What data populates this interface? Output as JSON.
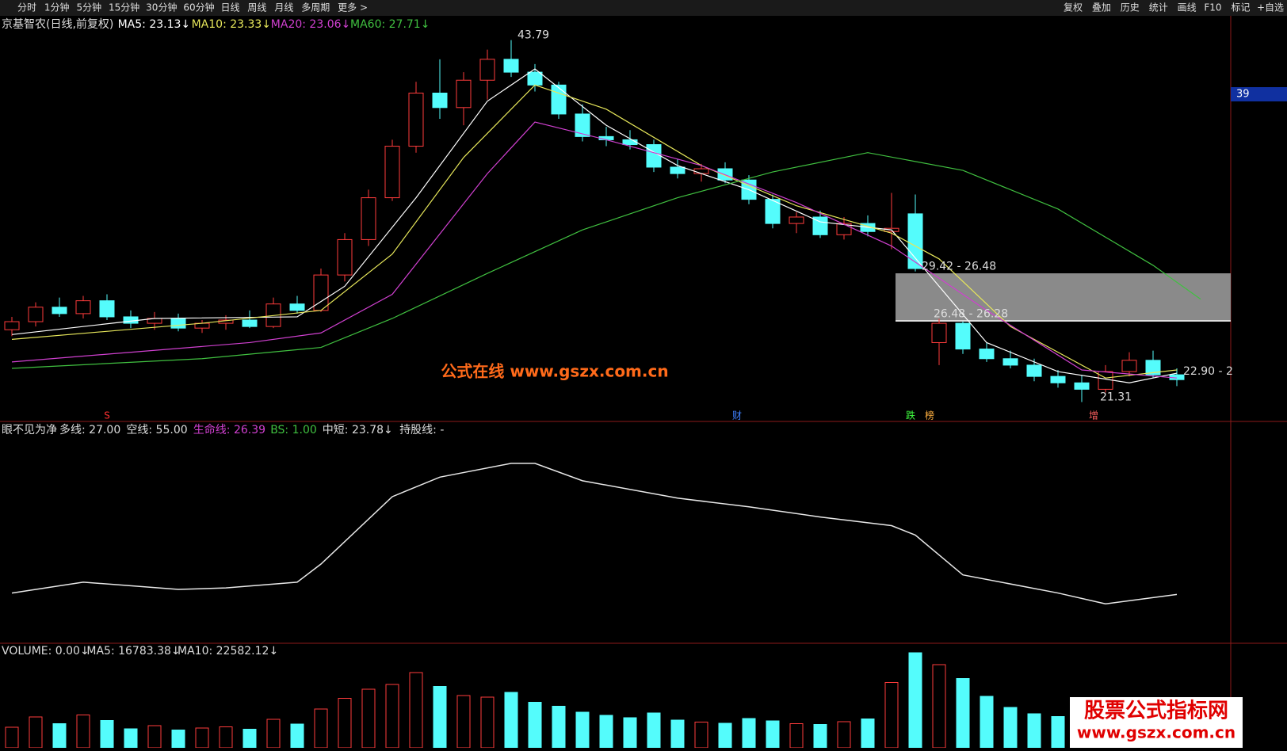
{
  "toolbar": {
    "left": [
      "分时",
      "1分钟",
      "5分钟",
      "15分钟",
      "30分钟",
      "60分钟",
      "日线",
      "周线",
      "月线",
      "多周期",
      "更多 >"
    ],
    "right": [
      "复权",
      "叠加",
      "历史",
      "统计",
      "画线",
      "F10",
      "标记",
      "+自选"
    ]
  },
  "price_panel": {
    "title": "京基智农(日线,前复权)",
    "ma_labels": [
      {
        "text": "MA5: 23.13↓",
        "color": "#ffffff"
      },
      {
        "text": "MA10: 23.33↓",
        "color": "#e6e65a"
      },
      {
        "text": "MA20: 23.06↓",
        "color": "#d040d0"
      },
      {
        "text": "MA60: 27.71↓",
        "color": "#40c040"
      }
    ],
    "ylim": [
      20.2,
      45.2
    ],
    "candles": [
      {
        "open": 25.8,
        "high": 26.6,
        "low": 25.4,
        "close": 26.3
      },
      {
        "open": 26.3,
        "high": 27.5,
        "low": 26.0,
        "close": 27.2
      },
      {
        "open": 27.2,
        "high": 27.8,
        "low": 26.6,
        "close": 26.8
      },
      {
        "open": 26.8,
        "high": 27.9,
        "low": 26.5,
        "close": 27.6
      },
      {
        "open": 27.6,
        "high": 28.0,
        "low": 26.4,
        "close": 26.6
      },
      {
        "open": 26.6,
        "high": 27.0,
        "low": 25.9,
        "close": 26.2
      },
      {
        "open": 26.2,
        "high": 26.9,
        "low": 25.8,
        "close": 26.5
      },
      {
        "open": 26.5,
        "high": 26.8,
        "low": 25.7,
        "close": 25.9
      },
      {
        "open": 25.9,
        "high": 26.4,
        "low": 25.6,
        "close": 26.2
      },
      {
        "open": 26.2,
        "high": 26.7,
        "low": 25.8,
        "close": 26.4
      },
      {
        "open": 26.4,
        "high": 27.0,
        "low": 25.9,
        "close": 26.0
      },
      {
        "open": 26.0,
        "high": 27.8,
        "low": 25.9,
        "close": 27.4
      },
      {
        "open": 27.4,
        "high": 27.9,
        "low": 26.8,
        "close": 27.0
      },
      {
        "open": 27.0,
        "high": 29.6,
        "low": 26.9,
        "close": 29.2
      },
      {
        "open": 29.2,
        "high": 31.8,
        "low": 28.8,
        "close": 31.4
      },
      {
        "open": 31.4,
        "high": 34.5,
        "low": 31.0,
        "close": 34.0
      },
      {
        "open": 34.0,
        "high": 37.6,
        "low": 33.8,
        "close": 37.2
      },
      {
        "open": 37.2,
        "high": 41.2,
        "low": 36.8,
        "close": 40.5
      },
      {
        "open": 40.5,
        "high": 42.6,
        "low": 38.9,
        "close": 39.6
      },
      {
        "open": 39.6,
        "high": 41.8,
        "low": 38.5,
        "close": 41.3
      },
      {
        "open": 41.3,
        "high": 43.2,
        "low": 40.1,
        "close": 42.6
      },
      {
        "open": 42.6,
        "high": 43.79,
        "low": 41.5,
        "close": 41.8
      },
      {
        "open": 41.8,
        "high": 42.3,
        "low": 40.6,
        "close": 41.0
      },
      {
        "open": 41.0,
        "high": 41.2,
        "low": 38.9,
        "close": 39.2
      },
      {
        "open": 39.2,
        "high": 39.8,
        "low": 37.5,
        "close": 37.8
      },
      {
        "open": 37.8,
        "high": 38.4,
        "low": 37.2,
        "close": 37.6
      },
      {
        "open": 37.6,
        "high": 38.2,
        "low": 37.0,
        "close": 37.3
      },
      {
        "open": 37.3,
        "high": 37.6,
        "low": 35.6,
        "close": 35.9
      },
      {
        "open": 35.9,
        "high": 36.4,
        "low": 35.2,
        "close": 35.5
      },
      {
        "open": 35.5,
        "high": 36.1,
        "low": 35.0,
        "close": 35.8
      },
      {
        "open": 35.8,
        "high": 36.2,
        "low": 34.9,
        "close": 35.1
      },
      {
        "open": 35.1,
        "high": 35.4,
        "low": 33.6,
        "close": 33.9
      },
      {
        "open": 33.9,
        "high": 34.2,
        "low": 32.1,
        "close": 32.4
      },
      {
        "open": 32.4,
        "high": 33.1,
        "low": 31.8,
        "close": 32.8
      },
      {
        "open": 32.8,
        "high": 33.2,
        "low": 31.5,
        "close": 31.7
      },
      {
        "open": 31.7,
        "high": 32.8,
        "low": 31.4,
        "close": 32.4
      },
      {
        "open": 32.4,
        "high": 32.9,
        "low": 31.6,
        "close": 31.9
      },
      {
        "open": 31.9,
        "high": 34.3,
        "low": 30.8,
        "close": 32.1
      },
      {
        "open": 33.0,
        "high": 34.2,
        "low": 29.42,
        "close": 29.6
      },
      {
        "open": 25.0,
        "high": 26.48,
        "low": 23.6,
        "close": 26.2
      },
      {
        "open": 26.2,
        "high": 26.3,
        "low": 24.3,
        "close": 24.6
      },
      {
        "open": 24.6,
        "high": 25.0,
        "low": 23.8,
        "close": 24.0
      },
      {
        "open": 24.0,
        "high": 24.5,
        "low": 23.4,
        "close": 23.6
      },
      {
        "open": 23.6,
        "high": 24.0,
        "low": 22.6,
        "close": 22.9
      },
      {
        "open": 22.9,
        "high": 23.3,
        "low": 22.2,
        "close": 22.5
      },
      {
        "open": 22.5,
        "high": 23.0,
        "low": 21.31,
        "close": 22.1
      },
      {
        "open": 22.1,
        "high": 23.6,
        "low": 21.9,
        "close": 23.2
      },
      {
        "open": 23.2,
        "high": 24.4,
        "low": 22.9,
        "close": 23.9
      },
      {
        "open": 23.9,
        "high": 24.5,
        "low": 22.8,
        "close": 23.0
      },
      {
        "open": 23.0,
        "high": 23.4,
        "low": 22.3,
        "close": 22.7
      }
    ],
    "lines": [
      {
        "name": "MA5",
        "color": "#ffffff",
        "x": [
          0,
          6,
          12,
          14,
          17,
          20,
          22,
          25,
          28,
          31,
          34,
          37,
          39,
          41,
          44,
          47,
          49
        ],
        "values": [
          25.5,
          26.5,
          26.6,
          28.5,
          34.0,
          40.0,
          42.0,
          38.5,
          36.0,
          34.5,
          32.5,
          32.0,
          28.5,
          25.0,
          23.2,
          22.5,
          23.1
        ]
      },
      {
        "name": "MA10",
        "color": "#e6e65a",
        "x": [
          0,
          8,
          13,
          16,
          19,
          22,
          25,
          29,
          33,
          37,
          39,
          42,
          46,
          49
        ],
        "values": [
          25.2,
          26.2,
          27.0,
          30.5,
          36.5,
          41.0,
          39.5,
          36.0,
          33.5,
          31.8,
          30.2,
          26.0,
          22.8,
          23.3
        ]
      },
      {
        "name": "MA20",
        "color": "#d040d0",
        "x": [
          0,
          10,
          13,
          16,
          20,
          22,
          25,
          29,
          33,
          37,
          41,
          45,
          49
        ],
        "values": [
          23.8,
          25.0,
          25.6,
          28.0,
          35.5,
          38.7,
          37.6,
          36.0,
          33.7,
          31.0,
          27.0,
          23.3,
          22.8
        ]
      },
      {
        "name": "MA60",
        "color": "#40c040",
        "x": [
          0,
          8,
          13,
          16,
          20,
          24,
          28,
          32,
          36,
          40,
          44,
          48,
          50
        ],
        "values": [
          23.4,
          24.0,
          24.7,
          26.5,
          29.3,
          32.0,
          34.0,
          35.6,
          36.8,
          35.7,
          33.3,
          29.8,
          27.7
        ]
      }
    ],
    "annotations": [
      {
        "text": "43.79",
        "x": 21,
        "y": 43.79
      },
      {
        "text": "29.42 - 26.48",
        "x": 38,
        "y": 29.42
      },
      {
        "text": "26.48 - 26.28",
        "x": 38.5,
        "y": 26.48
      },
      {
        "text": "22.90 - 2",
        "x": 49,
        "y": 22.9
      },
      {
        "text": "21.31",
        "x": 45.5,
        "y": 21.31
      }
    ],
    "markers": [
      {
        "text": "S",
        "x": 4,
        "color": "#ff3030"
      },
      {
        "text": "财",
        "x": 30.5,
        "color": "#4080ff"
      },
      {
        "text": "跌",
        "x": 37.8,
        "color": "#40ff40"
      },
      {
        "text": "榜",
        "x": 38.6,
        "color": "#ffb040"
      },
      {
        "text": "增",
        "x": 45.5,
        "color": "#ff6060"
      }
    ],
    "axis_badge": "39"
  },
  "indicator_panel": {
    "title": "眼不见为净",
    "labels": [
      {
        "text": "多线: 27.00",
        "color": "#dddddd"
      },
      {
        "text": "空线: 55.00",
        "color": "#dddddd"
      },
      {
        "text": "生命线: 26.39",
        "color": "#d040d0"
      },
      {
        "text": "BS: 1.00",
        "color": "#40c040"
      },
      {
        "text": "中短: 23.78↓",
        "color": "#dddddd"
      },
      {
        "text": "持股线: -",
        "color": "#dddddd"
      }
    ],
    "ylim": [
      18,
      46
    ],
    "line": {
      "x": [
        0,
        3,
        7,
        9,
        12,
        13,
        16,
        18,
        21,
        22,
        24,
        28,
        31,
        34,
        37,
        38,
        40,
        44,
        46,
        49
      ],
      "values": [
        24.5,
        26.0,
        25.0,
        25.2,
        26.0,
        28.5,
        37.8,
        40.5,
        42.4,
        42.4,
        40.0,
        37.6,
        36.4,
        35.0,
        33.8,
        32.5,
        27.0,
        24.5,
        23.0,
        24.3
      ]
    }
  },
  "volume_panel": {
    "labels": [
      {
        "text": "VOLUME: 0.00↓",
        "color": "#dddddd"
      },
      {
        "text": "MA5: 16783.38↓",
        "color": "#dddddd"
      },
      {
        "text": "MA10: 22582.12↓",
        "color": "#dddddd"
      }
    ],
    "ylim": [
      0,
      26000
    ],
    "values": [
      5200,
      7800,
      6100,
      8300,
      6900,
      4800,
      5600,
      4500,
      5000,
      5300,
      4700,
      7200,
      6000,
      9800,
      12500,
      14800,
      16000,
      19000,
      15500,
      13200,
      12800,
      14000,
      11500,
      10500,
      9000,
      8200,
      7600,
      8800,
      7000,
      6500,
      6200,
      7400,
      6800,
      6100,
      5900,
      6600,
      7300,
      16500,
      24000,
      21000,
      17500,
      13000,
      10200,
      8600,
      7900,
      6800,
      7500,
      8200,
      6900,
      5600
    ]
  },
  "watermark": "公式在线  www.gszx.com.cn",
  "logo": {
    "title": "股票公式指标网",
    "url": "www.gszx.com.cn"
  }
}
